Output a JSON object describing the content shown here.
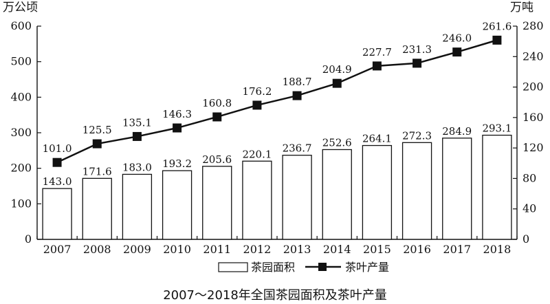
{
  "chart_data": {
    "type": "bar+line",
    "title": "2007～2018年全国茶园面积及茶叶产量",
    "categories": [
      "2007",
      "2008",
      "2009",
      "2010",
      "2011",
      "2012",
      "2013",
      "2014",
      "2015",
      "2016",
      "2017",
      "2018"
    ],
    "series": [
      {
        "name": "茶园面积",
        "type": "bar",
        "axis": "left",
        "values": [
          143.0,
          171.6,
          183.0,
          193.2,
          205.6,
          220.1,
          236.7,
          252.6,
          264.1,
          272.3,
          284.9,
          293.1
        ],
        "labels": [
          "143.0",
          "171.6",
          "183.0",
          "193.2",
          "205.6",
          "220.1",
          "236.7",
          "252.6",
          "264.1",
          "272.3",
          "284.9",
          "293.1"
        ],
        "color": "#ffffff",
        "border": "#111111"
      },
      {
        "name": "茶叶产量",
        "type": "line",
        "axis": "right",
        "values": [
          101.0,
          125.5,
          135.1,
          146.3,
          160.8,
          176.2,
          188.7,
          204.9,
          227.7,
          231.3,
          246.0,
          261.6
        ],
        "labels": [
          "101.0",
          "125.5",
          "135.1",
          "146.3",
          "160.8",
          "176.2",
          "188.7",
          "204.9",
          "227.7",
          "231.3",
          "246.0",
          "261.6"
        ],
        "color": "#111111",
        "marker": "square"
      }
    ],
    "y_left": {
      "unit": "万公顷",
      "ylim": [
        0,
        600
      ],
      "ticks": [
        0,
        100,
        200,
        300,
        400,
        500,
        600
      ],
      "tick_labels": [
        "0",
        "100",
        "200",
        "300",
        "400",
        "500",
        "600"
      ]
    },
    "y_right": {
      "unit": "万吨",
      "ylim": [
        0,
        280
      ],
      "ticks": [
        0,
        40,
        80,
        120,
        160,
        200,
        240,
        280
      ],
      "tick_labels": [
        "0",
        "40",
        "80",
        "120",
        "160",
        "200",
        "240",
        "280"
      ]
    },
    "legend": {
      "placement": "bottom-center"
    },
    "grid": false
  }
}
